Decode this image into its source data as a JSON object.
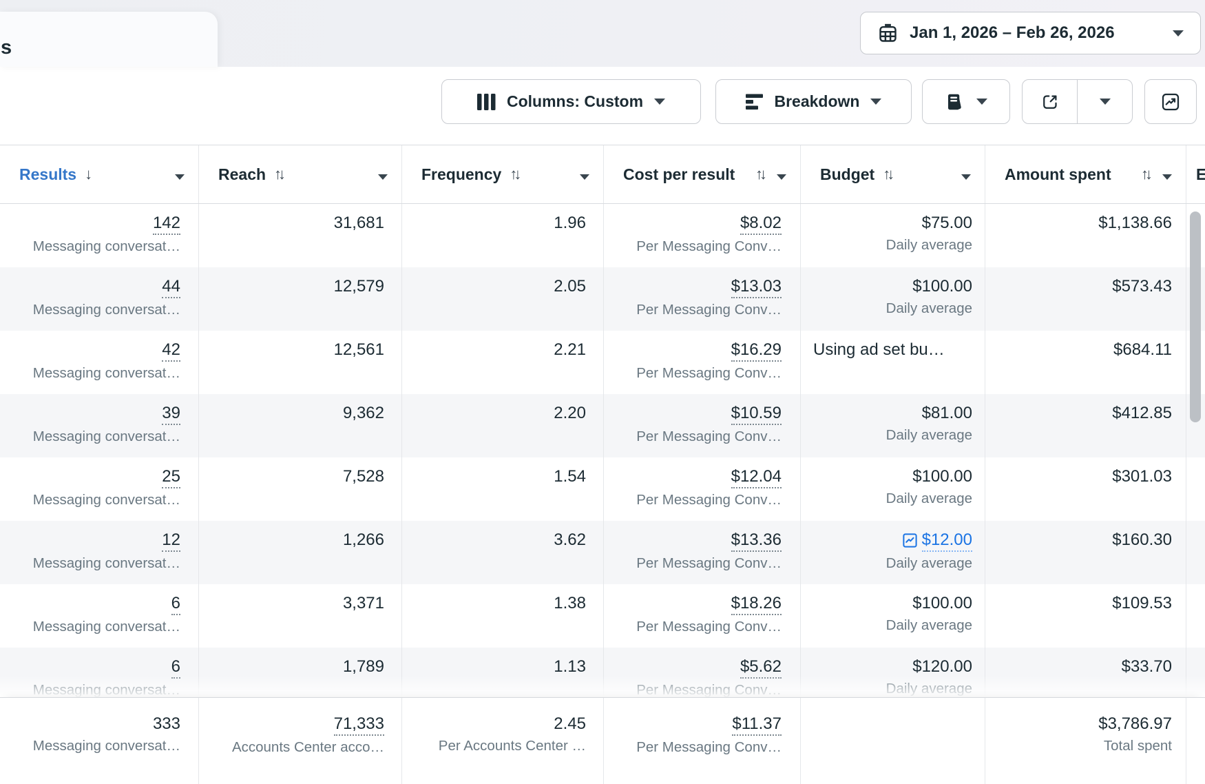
{
  "colors": {
    "accent_blue": "#3577c9",
    "link_blue": "#1b74e4",
    "text_dark": "#1c2b33",
    "text_muted": "#6a7882",
    "row_alt_bg": "#f5f6f8",
    "grid_border": "#e5e7ea",
    "button_border": "#c9ccd1",
    "topbar_bg": "#eff0f4",
    "scrollbar": "#bcc0c5"
  },
  "topbar": {
    "tab_label_partial": "s",
    "date_range_label": "Jan 1, 2026 – Feb 26, 2026"
  },
  "toolbar": {
    "columns_label": "Columns: Custom",
    "breakdown_label": "Breakdown"
  },
  "icons": {
    "calendar-icon": "calendar grid",
    "columns-icon": "three vertical bars",
    "breakdown-icon": "stacked decreasing bars",
    "reports-icon": "fanned report pages",
    "export-icon": "box with up-right arrow",
    "chart-icon": "line chart in box",
    "budget-insight-icon": "blue line chart in box",
    "sort-desc-icon": "down arrow",
    "sort-both-icon": "up-down arrows",
    "dropdown-caret-icon": "filled down triangle"
  },
  "table": {
    "columns": [
      {
        "key": "results",
        "label": "Results",
        "sort": "desc",
        "active": true
      },
      {
        "key": "reach",
        "label": "Reach",
        "sort": "both"
      },
      {
        "key": "frequency",
        "label": "Frequency",
        "sort": "both"
      },
      {
        "key": "cost_per_result",
        "label": "Cost per result",
        "sort": "both",
        "two_line": true
      },
      {
        "key": "budget",
        "label": "Budget",
        "sort": "both"
      },
      {
        "key": "amount_spent",
        "label": "Amount spent",
        "sort": "both",
        "two_line": true
      },
      {
        "key": "next_partial",
        "label": "E",
        "partial": true
      }
    ],
    "rows": [
      {
        "results": "142",
        "results_sub": "Messaging conversat…",
        "reach": "31,681",
        "frequency": "1.96",
        "cost_per_result": "$8.02",
        "cost_sub": "Per Messaging Conv…",
        "budget": "$75.00",
        "budget_sub": "Daily average",
        "budget_type": "daily",
        "amount_spent": "$1,138.66"
      },
      {
        "results": "44",
        "results_sub": "Messaging conversat…",
        "reach": "12,579",
        "frequency": "2.05",
        "cost_per_result": "$13.03",
        "cost_sub": "Per Messaging Conv…",
        "budget": "$100.00",
        "budget_sub": "Daily average",
        "budget_type": "daily",
        "amount_spent": "$573.43"
      },
      {
        "results": "42",
        "results_sub": "Messaging conversat…",
        "reach": "12,561",
        "frequency": "2.21",
        "cost_per_result": "$16.29",
        "cost_sub": "Per Messaging Conv…",
        "budget": "Using ad set bu…",
        "budget_sub": "",
        "budget_type": "adset",
        "amount_spent": "$684.11"
      },
      {
        "results": "39",
        "results_sub": "Messaging conversat…",
        "reach": "9,362",
        "frequency": "2.20",
        "cost_per_result": "$10.59",
        "cost_sub": "Per Messaging Conv…",
        "budget": "$81.00",
        "budget_sub": "Daily average",
        "budget_type": "daily",
        "amount_spent": "$412.85"
      },
      {
        "results": "25",
        "results_sub": "Messaging conversat…",
        "reach": "7,528",
        "frequency": "1.54",
        "cost_per_result": "$12.04",
        "cost_sub": "Per Messaging Conv…",
        "budget": "$100.00",
        "budget_sub": "Daily average",
        "budget_type": "daily",
        "amount_spent": "$301.03"
      },
      {
        "results": "12",
        "results_sub": "Messaging conversat…",
        "reach": "1,266",
        "frequency": "3.62",
        "cost_per_result": "$13.36",
        "cost_sub": "Per Messaging Conv…",
        "budget": "$12.00",
        "budget_sub": "Daily average",
        "budget_type": "link",
        "amount_spent": "$160.30"
      },
      {
        "results": "6",
        "results_sub": "Messaging conversat…",
        "reach": "3,371",
        "frequency": "1.38",
        "cost_per_result": "$18.26",
        "cost_sub": "Per Messaging Conv…",
        "budget": "$100.00",
        "budget_sub": "Daily average",
        "budget_type": "daily",
        "amount_spent": "$109.53"
      },
      {
        "results": "6",
        "results_sub": "Messaging conversat…",
        "reach": "1,789",
        "frequency": "1.13",
        "cost_per_result": "$5.62",
        "cost_sub": "Per Messaging Conv…",
        "budget": "$120.00",
        "budget_sub": "Daily average",
        "budget_type": "daily",
        "amount_spent": "$33.70"
      }
    ],
    "summary": {
      "results": "333",
      "results_sub": "Messaging conversat…",
      "reach": "71,333",
      "reach_sub": "Accounts Center acco…",
      "frequency": "2.45",
      "frequency_sub": "Per Accounts Center …",
      "cost_per_result": "$11.37",
      "cost_sub": "Per Messaging Conv…",
      "budget": "",
      "amount_spent": "$3,786.97",
      "amount_sub": "Total spent"
    }
  }
}
